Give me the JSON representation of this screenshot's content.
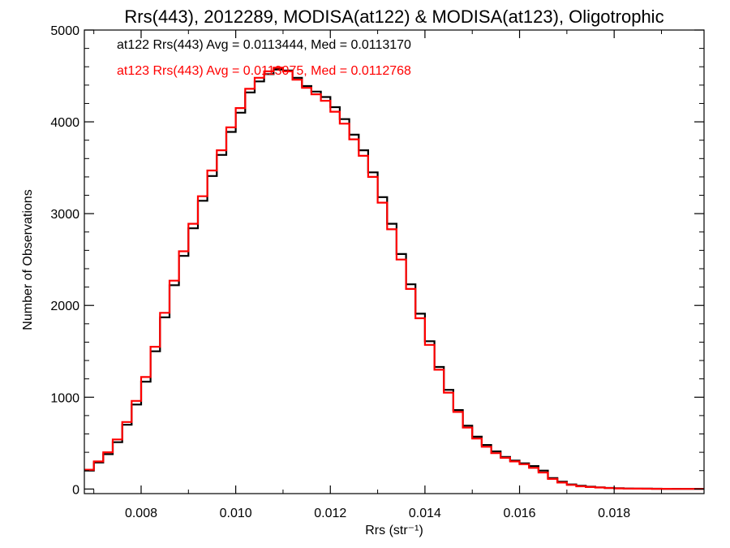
{
  "chart_data": {
    "type": "line",
    "title": "Rrs(443), 2012289, MODISA(at122) & MODISA(at123), Oligotrophic",
    "xlabel": "Rrs (str⁻¹)",
    "ylabel": "Number of Observations",
    "xlim": [
      0.0068,
      0.0199
    ],
    "ylim": [
      -50,
      5000
    ],
    "xticks": [
      0.008,
      0.01,
      0.012,
      0.014,
      0.016,
      0.018
    ],
    "xtick_labels": [
      "0.008",
      "0.010",
      "0.012",
      "0.014",
      "0.016",
      "0.018"
    ],
    "yticks": [
      0,
      1000,
      2000,
      3000,
      4000,
      5000
    ],
    "ytick_labels": [
      "0",
      "1000",
      "2000",
      "3000",
      "4000",
      "5000"
    ],
    "grid": false,
    "annotations": [
      {
        "text": "at122 Rrs(443) Avg = 0.0113444, Med = 0.0113170",
        "color": "#000000"
      },
      {
        "text": "at123 Rrs(443) Avg = 0.0113075, Med = 0.0112768",
        "color": "#ff0000"
      }
    ],
    "series": [
      {
        "color": "#000000",
        "step": true,
        "x": [
          0.0068,
          0.007,
          0.0072,
          0.0074,
          0.0076,
          0.0078,
          0.008,
          0.0082,
          0.0084,
          0.0086,
          0.0088,
          0.009,
          0.0092,
          0.0094,
          0.0096,
          0.0098,
          0.01,
          0.0102,
          0.0104,
          0.0106,
          0.0108,
          0.011,
          0.0112,
          0.0114,
          0.0116,
          0.0118,
          0.012,
          0.0122,
          0.0124,
          0.0126,
          0.0128,
          0.013,
          0.0132,
          0.0134,
          0.0136,
          0.0138,
          0.014,
          0.0142,
          0.0144,
          0.0146,
          0.0148,
          0.015,
          0.0152,
          0.0154,
          0.0156,
          0.0158,
          0.016,
          0.0162,
          0.0164,
          0.0166,
          0.0168,
          0.017,
          0.0172,
          0.0174,
          0.0176,
          0.0178,
          0.018,
          0.0182,
          0.0184,
          0.0186,
          0.0188,
          0.019,
          0.0192,
          0.0194,
          0.0196,
          0.0198
        ],
        "y": [
          200,
          290,
          380,
          510,
          700,
          920,
          1170,
          1500,
          1870,
          2220,
          2540,
          2840,
          3140,
          3410,
          3640,
          3890,
          4100,
          4320,
          4440,
          4520,
          4570,
          4560,
          4480,
          4390,
          4330,
          4270,
          4160,
          4030,
          3860,
          3690,
          3450,
          3180,
          2890,
          2560,
          2230,
          1910,
          1610,
          1330,
          1080,
          860,
          690,
          570,
          480,
          410,
          350,
          310,
          280,
          250,
          200,
          120,
          80,
          50,
          35,
          25,
          18,
          12,
          8,
          6,
          5,
          4,
          3,
          2,
          2,
          1,
          1,
          1
        ]
      },
      {
        "color": "#ff0000",
        "step": true,
        "x": [
          0.0068,
          0.007,
          0.0072,
          0.0074,
          0.0076,
          0.0078,
          0.008,
          0.0082,
          0.0084,
          0.0086,
          0.0088,
          0.009,
          0.0092,
          0.0094,
          0.0096,
          0.0098,
          0.01,
          0.0102,
          0.0104,
          0.0106,
          0.0108,
          0.011,
          0.0112,
          0.0114,
          0.0116,
          0.0118,
          0.012,
          0.0122,
          0.0124,
          0.0126,
          0.0128,
          0.013,
          0.0132,
          0.0134,
          0.0136,
          0.0138,
          0.014,
          0.0142,
          0.0144,
          0.0146,
          0.0148,
          0.015,
          0.0152,
          0.0154,
          0.0156,
          0.0158,
          0.016,
          0.0162,
          0.0164,
          0.0166,
          0.0168,
          0.017,
          0.0172,
          0.0174,
          0.0176,
          0.0178,
          0.018,
          0.0182,
          0.0184,
          0.0186,
          0.0188,
          0.019,
          0.0192,
          0.0194,
          0.0196,
          0.0198
        ],
        "y": [
          210,
          300,
          400,
          540,
          730,
          960,
          1220,
          1550,
          1920,
          2270,
          2590,
          2890,
          3190,
          3470,
          3690,
          3940,
          4150,
          4360,
          4480,
          4550,
          4590,
          4550,
          4460,
          4370,
          4300,
          4230,
          4110,
          3980,
          3810,
          3630,
          3400,
          3120,
          2830,
          2500,
          2180,
          1860,
          1570,
          1300,
          1050,
          840,
          670,
          550,
          460,
          390,
          340,
          300,
          270,
          230,
          180,
          110,
          70,
          45,
          30,
          22,
          16,
          11,
          7,
          5,
          4,
          3,
          2,
          2,
          1,
          1,
          1,
          1
        ]
      }
    ]
  }
}
